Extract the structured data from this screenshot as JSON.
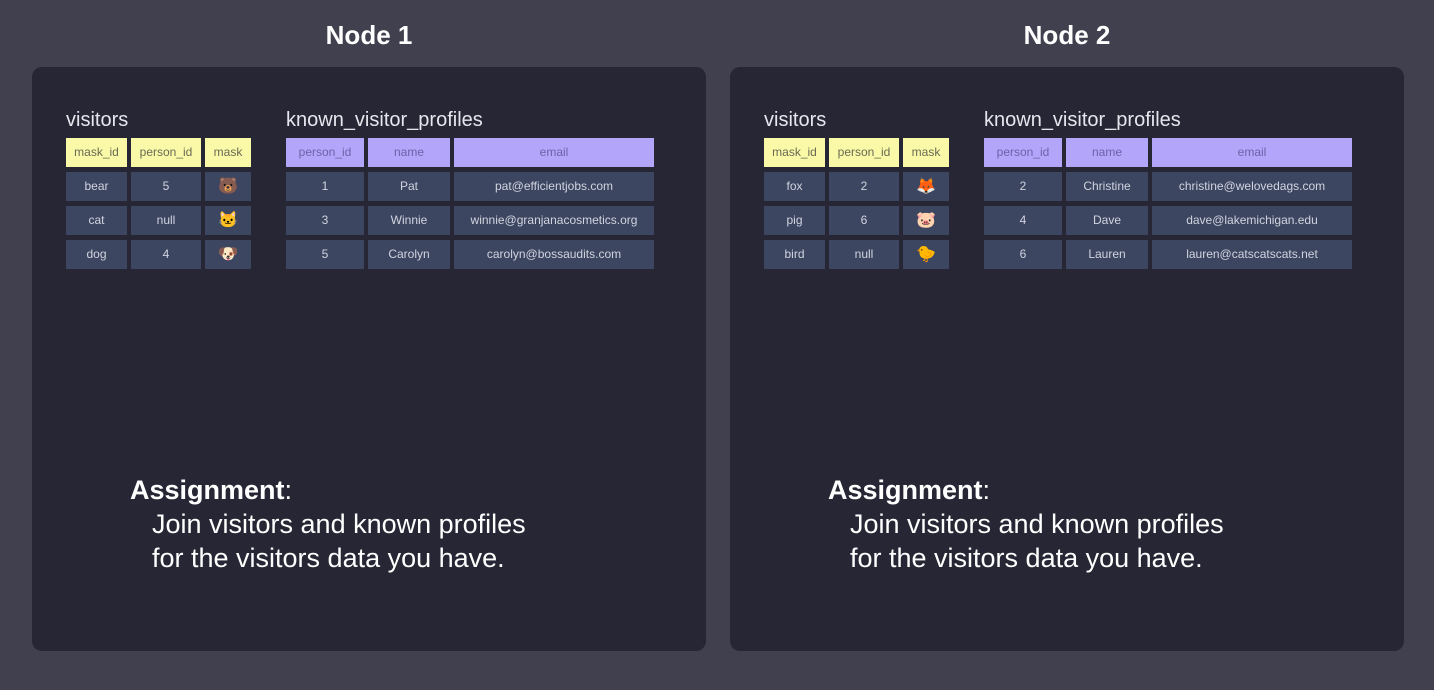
{
  "nodes": [
    {
      "title": "Node 1",
      "visitors": {
        "label": "visitors",
        "headers": [
          "mask_id",
          "person_id",
          "mask"
        ],
        "rows": [
          [
            "bear",
            "5",
            "🐻"
          ],
          [
            "cat",
            "null",
            "🐱"
          ],
          [
            "dog",
            "4",
            "🐶"
          ]
        ]
      },
      "profiles": {
        "label": "known_visitor_profiles",
        "headers": [
          "person_id",
          "name",
          "email"
        ],
        "rows": [
          [
            "1",
            "Pat",
            "pat@efficientjobs.com"
          ],
          [
            "3",
            "Winnie",
            "winnie@granjanacosmetics.org"
          ],
          [
            "5",
            "Carolyn",
            "carolyn@bossaudits.com"
          ]
        ]
      },
      "assignment": {
        "label": "Assignment",
        "colon": ":",
        "line1": "Join visitors and known profiles",
        "line2": "for the visitors data you have."
      }
    },
    {
      "title": "Node 2",
      "visitors": {
        "label": "visitors",
        "headers": [
          "mask_id",
          "person_id",
          "mask"
        ],
        "rows": [
          [
            "fox",
            "2",
            "🦊"
          ],
          [
            "pig",
            "6",
            "🐷"
          ],
          [
            "bird",
            "null",
            "🐤"
          ]
        ]
      },
      "profiles": {
        "label": "known_visitor_profiles",
        "headers": [
          "person_id",
          "name",
          "email"
        ],
        "rows": [
          [
            "2",
            "Christine",
            "christine@welovedags.com"
          ],
          [
            "4",
            "Dave",
            "dave@lakemichigan.edu"
          ],
          [
            "6",
            "Lauren",
            "lauren@catscatscats.net"
          ]
        ]
      },
      "assignment": {
        "label": "Assignment",
        "colon": ":",
        "line1": "Join visitors and known profiles",
        "line2": "for the visitors data you have."
      }
    }
  ],
  "colors": {
    "background": "#40404f",
    "panel": "#262634",
    "cell": "#3d4660",
    "visitors_header": "#f9f9a8",
    "profiles_header": "#b3a6fa"
  }
}
